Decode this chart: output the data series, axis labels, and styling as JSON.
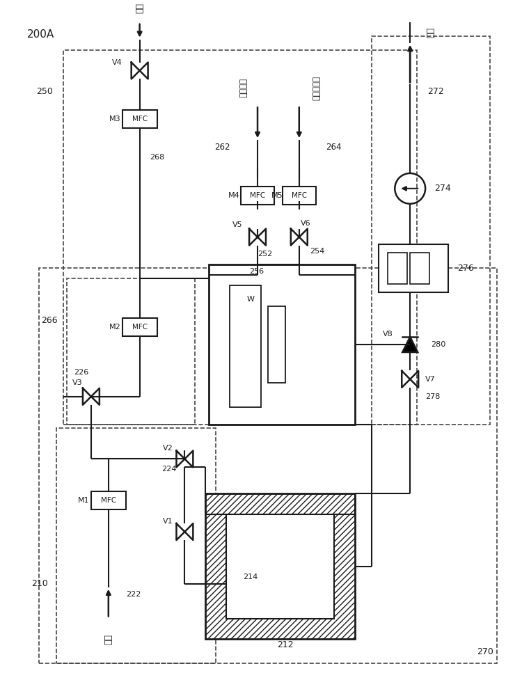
{
  "bg_color": "#ffffff",
  "lc": "#1a1a1a",
  "dc": "#444444",
  "fig_w": 7.5,
  "fig_h": 10.0,
  "labels": {
    "main_label": "200A",
    "carrier_top": "载气",
    "carrier_bottom": "载气",
    "purge": "吹扫气体",
    "reactive": "反应性气体",
    "waste": "废气",
    "V1": "V1",
    "V2": "V2",
    "V3": "V3",
    "V4": "V4",
    "V5": "V5",
    "V6": "V6",
    "V7": "V7",
    "V8": "V8",
    "M1": "M1",
    "M2": "M2",
    "M3": "M3",
    "M4": "M4",
    "M5": "M5",
    "MFC": "MFC",
    "W": "W",
    "n210": "210",
    "n212": "212",
    "n214": "214",
    "n222": "222",
    "n224": "224",
    "n226": "226",
    "n250": "250",
    "n252": "252",
    "n254": "254",
    "n256": "256",
    "n262": "262",
    "n264": "264",
    "n266": "266",
    "n268": "268",
    "n270": "270",
    "n272": "272",
    "n274": "274",
    "n276": "276",
    "n278": "278",
    "n280": "280"
  }
}
